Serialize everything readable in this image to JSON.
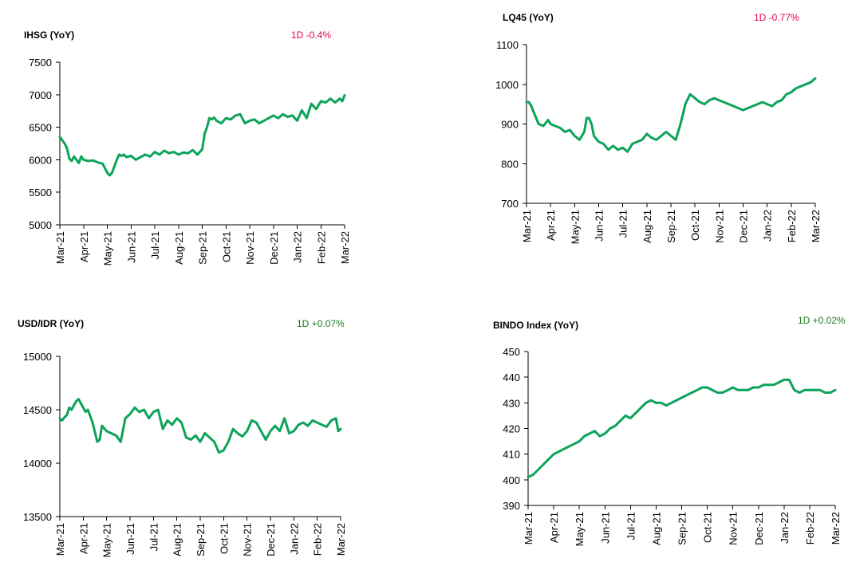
{
  "chart_data": [
    {
      "id": "ihsg",
      "type": "line",
      "title": "IHSG (YoY)",
      "change_label": "1D -0.4%",
      "change_color": "#e0004d",
      "line_color": "#0ca35a",
      "x_labels": [
        "Mar-21",
        "Apr-21",
        "May-21",
        "Jun-21",
        "Jul-21",
        "Aug-21",
        "Sep-21",
        "Oct-21",
        "Nov-21",
        "Dec-21",
        "Jan-22",
        "Feb-22",
        "Mar-22"
      ],
      "y_ticks": [
        "5000",
        "5500",
        "6000",
        "6500",
        "7000",
        "7500"
      ],
      "ylim": [
        5000,
        7500
      ],
      "series": [
        {
          "x": [
            0,
            0.1,
            0.2,
            0.3,
            0.4,
            0.5,
            0.6,
            0.7,
            0.8,
            0.9,
            1.0,
            1.2,
            1.4,
            1.6,
            1.8,
            2.0,
            2.1,
            2.2,
            2.3,
            2.4,
            2.5,
            2.6,
            2.7,
            2.8,
            3.0,
            3.2,
            3.4,
            3.6,
            3.8,
            4.0,
            4.2,
            4.4,
            4.6,
            4.8,
            5.0,
            5.2,
            5.4,
            5.6,
            5.8,
            6.0,
            6.1,
            6.2,
            6.3,
            6.4,
            6.5,
            6.6,
            6.8,
            7.0,
            7.2,
            7.4,
            7.6,
            7.8,
            8.0,
            8.2,
            8.4,
            8.6,
            8.8,
            9.0,
            9.2,
            9.4,
            9.6,
            9.8,
            10.0,
            10.2,
            10.4,
            10.6,
            10.8,
            11.0,
            11.2,
            11.4,
            11.6,
            11.8,
            11.9,
            12.0
          ],
          "values": [
            6350,
            6300,
            6250,
            6180,
            6020,
            5980,
            6050,
            6000,
            5950,
            6050,
            6000,
            5980,
            5990,
            5960,
            5940,
            5800,
            5760,
            5800,
            5900,
            6000,
            6080,
            6060,
            6080,
            6040,
            6060,
            6000,
            6040,
            6080,
            6050,
            6120,
            6080,
            6140,
            6100,
            6120,
            6080,
            6110,
            6100,
            6150,
            6080,
            6160,
            6400,
            6500,
            6640,
            6620,
            6650,
            6600,
            6560,
            6640,
            6620,
            6680,
            6700,
            6560,
            6600,
            6620,
            6560,
            6600,
            6640,
            6680,
            6640,
            6700,
            6660,
            6680,
            6600,
            6760,
            6640,
            6860,
            6780,
            6900,
            6880,
            6940,
            6880,
            6940,
            6900,
            6990
          ]
        }
      ]
    },
    {
      "id": "lq45",
      "type": "line",
      "title": "LQ45 (YoY)",
      "change_label": "1D -0.77%",
      "change_color": "#e0004d",
      "line_color": "#0ca35a",
      "x_labels": [
        "Mar-21",
        "Apr-21",
        "May-21",
        "Jun-21",
        "Jul-21",
        "Aug-21",
        "Sep-21",
        "Oct-21",
        "Nov-21",
        "Dec-21",
        "Jan-22",
        "Feb-22",
        "Mar-22"
      ],
      "y_ticks": [
        "700",
        "800",
        "900",
        "1000",
        "1100"
      ],
      "ylim": [
        700,
        1100
      ],
      "series": [
        {
          "x": [
            0,
            0.1,
            0.2,
            0.3,
            0.5,
            0.7,
            0.9,
            1.0,
            1.2,
            1.4,
            1.6,
            1.8,
            2.0,
            2.2,
            2.4,
            2.5,
            2.6,
            2.7,
            2.8,
            3.0,
            3.2,
            3.4,
            3.6,
            3.8,
            4.0,
            4.2,
            4.4,
            4.6,
            4.8,
            5.0,
            5.2,
            5.4,
            5.6,
            5.8,
            6.0,
            6.2,
            6.4,
            6.6,
            6.8,
            7.0,
            7.2,
            7.4,
            7.6,
            7.8,
            8.0,
            8.2,
            8.4,
            8.6,
            8.8,
            9.0,
            9.2,
            9.4,
            9.6,
            9.8,
            10.0,
            10.2,
            10.4,
            10.6,
            10.8,
            11.0,
            11.2,
            11.4,
            11.6,
            11.8,
            11.9,
            12.0
          ],
          "values": [
            955,
            955,
            945,
            930,
            900,
            895,
            910,
            900,
            895,
            890,
            880,
            885,
            870,
            860,
            880,
            915,
            915,
            900,
            870,
            855,
            850,
            835,
            845,
            835,
            840,
            830,
            850,
            855,
            860,
            875,
            865,
            860,
            870,
            880,
            870,
            860,
            900,
            950,
            975,
            965,
            955,
            950,
            960,
            965,
            960,
            955,
            950,
            945,
            940,
            935,
            940,
            945,
            950,
            955,
            950,
            945,
            955,
            960,
            975,
            980,
            990,
            995,
            1000,
            1005,
            1010,
            1015
          ]
        }
      ]
    },
    {
      "id": "usdidr",
      "type": "line",
      "title": "USD/IDR  (YoY)",
      "change_label": "1D +0.07%",
      "change_color": "#1a7a1a",
      "line_color": "#0ca35a",
      "x_labels": [
        "Mar-21",
        "Apr-21",
        "May-21",
        "Jun-21",
        "Jul-21",
        "Aug-21",
        "Sep-21",
        "Oct-21",
        "Nov-21",
        "Dec-21",
        "Jan-22",
        "Feb-22",
        "Mar-22"
      ],
      "y_ticks": [
        "13500",
        "14000",
        "14500",
        "15000"
      ],
      "ylim": [
        13500,
        15000
      ],
      "series": [
        {
          "x": [
            0,
            0.1,
            0.2,
            0.3,
            0.4,
            0.5,
            0.6,
            0.7,
            0.8,
            0.9,
            1.0,
            1.1,
            1.2,
            1.3,
            1.4,
            1.6,
            1.7,
            1.8,
            2.0,
            2.2,
            2.4,
            2.6,
            2.8,
            3.0,
            3.2,
            3.4,
            3.6,
            3.8,
            4.0,
            4.2,
            4.4,
            4.6,
            4.8,
            5.0,
            5.2,
            5.4,
            5.6,
            5.8,
            6.0,
            6.2,
            6.4,
            6.6,
            6.8,
            7.0,
            7.2,
            7.4,
            7.6,
            7.8,
            8.0,
            8.2,
            8.4,
            8.6,
            8.8,
            9.0,
            9.2,
            9.4,
            9.6,
            9.8,
            10.0,
            10.2,
            10.4,
            10.6,
            10.8,
            11.0,
            11.2,
            11.4,
            11.6,
            11.8,
            11.9,
            12.0
          ],
          "values": [
            14420,
            14400,
            14430,
            14450,
            14520,
            14500,
            14540,
            14580,
            14600,
            14560,
            14520,
            14480,
            14500,
            14440,
            14380,
            14200,
            14220,
            14350,
            14300,
            14280,
            14260,
            14200,
            14420,
            14460,
            14520,
            14480,
            14500,
            14420,
            14480,
            14500,
            14320,
            14400,
            14360,
            14420,
            14380,
            14240,
            14220,
            14260,
            14200,
            14280,
            14240,
            14200,
            14100,
            14120,
            14200,
            14320,
            14280,
            14250,
            14300,
            14400,
            14380,
            14300,
            14220,
            14300,
            14350,
            14300,
            14420,
            14280,
            14300,
            14360,
            14380,
            14350,
            14400,
            14380,
            14360,
            14340,
            14400,
            14420,
            14300,
            14320
          ]
        }
      ]
    },
    {
      "id": "bindo",
      "type": "line",
      "title": "BINDO Index (YoY)",
      "change_label": "1D +0.02%",
      "change_color": "#1a7a1a",
      "line_color": "#0ca35a",
      "x_labels": [
        "Mar-21",
        "Apr-21",
        "May-21",
        "Jun-21",
        "Jul-21",
        "Aug-21",
        "Sep-21",
        "Oct-21",
        "Nov-21",
        "Dec-21",
        "Jan-22",
        "Feb-22",
        "Mar-22"
      ],
      "y_ticks": [
        "390",
        "400",
        "410",
        "420",
        "430",
        "440",
        "450"
      ],
      "ylim": [
        390,
        450
      ],
      "series": [
        {
          "x": [
            0,
            0.2,
            0.4,
            0.6,
            0.8,
            1.0,
            1.2,
            1.4,
            1.6,
            1.8,
            2.0,
            2.2,
            2.4,
            2.6,
            2.8,
            3.0,
            3.2,
            3.4,
            3.6,
            3.8,
            4.0,
            4.2,
            4.4,
            4.6,
            4.8,
            5.0,
            5.2,
            5.4,
            5.6,
            5.8,
            6.0,
            6.2,
            6.4,
            6.6,
            6.8,
            7.0,
            7.2,
            7.4,
            7.6,
            7.8,
            8.0,
            8.2,
            8.4,
            8.6,
            8.8,
            9.0,
            9.2,
            9.4,
            9.6,
            9.8,
            10.0,
            10.2,
            10.4,
            10.6,
            10.8,
            11.0,
            11.2,
            11.4,
            11.6,
            11.8,
            12.0
          ],
          "values": [
            401,
            402,
            404,
            406,
            408,
            410,
            411,
            412,
            413,
            414,
            415,
            417,
            418,
            419,
            417,
            418,
            420,
            421,
            423,
            425,
            424,
            426,
            428,
            430,
            431,
            430,
            430,
            429,
            430,
            431,
            432,
            433,
            434,
            435,
            436,
            436,
            435,
            434,
            434,
            435,
            436,
            435,
            435,
            435,
            436,
            436,
            437,
            437,
            437,
            438,
            439,
            439,
            435,
            434,
            435,
            435,
            435,
            435,
            434,
            434,
            435
          ]
        }
      ]
    }
  ]
}
